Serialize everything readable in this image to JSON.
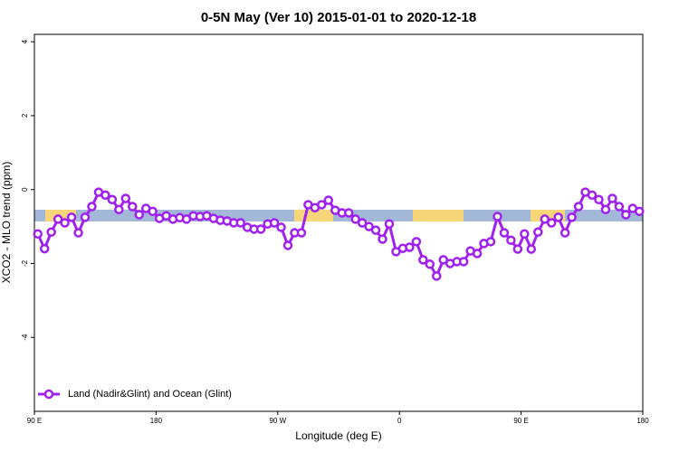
{
  "chart_data": {
    "type": "line",
    "title": "0-5N May (Ver 10)   2015-01-01 to 2020-12-18",
    "x_label": "Longitude (deg E)",
    "y_label": "XCO2 - MLO trend (ppm)",
    "xlim": [
      90,
      540
    ],
    "xticks": [
      {
        "value": 90,
        "label": "90 E"
      },
      180,
      {
        "value": 270,
        "label": "90 W"
      },
      {
        "value": 360,
        "label": "0"
      },
      {
        "value": 450,
        "label": "90 E"
      },
      {
        "value": 540,
        "label": "180"
      }
    ],
    "ylim": [
      -6,
      4.2
    ],
    "yticks": [
      -4,
      -2,
      0,
      2,
      4
    ],
    "legend": "bottom-left",
    "series": [
      {
        "name": "Land (Nadir&Glint) and Ocean (Glint)",
        "color": "#a020f0",
        "x": [
          92.5,
          97.5,
          102.5,
          107.5,
          112.5,
          117.5,
          122.5,
          127.5,
          132.5,
          137.5,
          142.5,
          147.5,
          152.5,
          157.5,
          162.5,
          167.5,
          172.5,
          177.5,
          182.5,
          187.5,
          192.5,
          197.5,
          202.5,
          207.5,
          212.5,
          217.5,
          222.5,
          227.5,
          232.5,
          237.5,
          242.5,
          247.5,
          252.5,
          257.5,
          262.5,
          267.5,
          272.5,
          277.5,
          282.5,
          287.5,
          292.5,
          297.5,
          302.5,
          307.5,
          312.5,
          317.5,
          322.5,
          327.5,
          332.5,
          337.5,
          342.5,
          347.5,
          352.5,
          357.5,
          362.5,
          367.5,
          372.5,
          377.5,
          382.5,
          387.5,
          392.5,
          397.5,
          402.5,
          407.5,
          412.5,
          417.5,
          422.5,
          427.5,
          432.5,
          437.5,
          442.5,
          447.5,
          452.5,
          457.5,
          462.5,
          467.5,
          472.5,
          477.5,
          482.5,
          487.5,
          492.5,
          497.5,
          502.5,
          507.5,
          512.5,
          517.5,
          522.5,
          527.5,
          532.5,
          537.5
        ],
        "values": [
          -1.2,
          -1.6,
          -1.15,
          -0.8,
          -0.9,
          -0.75,
          -1.17,
          -0.75,
          -0.46,
          -0.07,
          -0.15,
          -0.27,
          -0.54,
          -0.24,
          -0.46,
          -0.68,
          -0.51,
          -0.59,
          -0.78,
          -0.71,
          -0.8,
          -0.76,
          -0.8,
          -0.71,
          -0.73,
          -0.71,
          -0.78,
          -0.83,
          -0.85,
          -0.9,
          -0.9,
          -1.02,
          -1.07,
          -1.07,
          -0.93,
          -0.9,
          -1.02,
          -1.51,
          -1.17,
          -1.17,
          -0.41,
          -0.49,
          -0.41,
          -0.29,
          -0.56,
          -0.63,
          -0.63,
          -0.8,
          -0.9,
          -1.0,
          -1.1,
          -1.34,
          -0.93,
          -1.68,
          -1.59,
          -1.56,
          -1.41,
          -1.9,
          -2.02,
          -2.34,
          -1.9,
          -2.0,
          -1.95,
          -1.95,
          -1.66,
          -1.73,
          -1.46,
          -1.41,
          -0.73,
          -1.17,
          -1.37,
          -1.61,
          -1.2,
          -1.61,
          -1.15,
          -0.8,
          -0.9,
          -0.75,
          -1.17,
          -0.75,
          -0.46,
          -0.07,
          -0.15,
          -0.27,
          -0.54,
          -0.24,
          -0.46,
          -0.68,
          -0.51,
          -0.59
        ]
      }
    ]
  }
}
